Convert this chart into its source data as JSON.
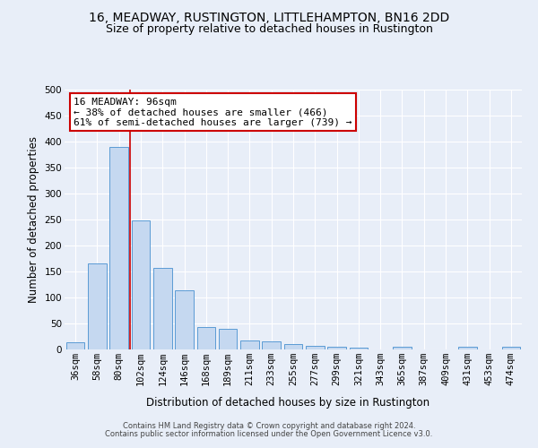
{
  "title": "16, MEADWAY, RUSTINGTON, LITTLEHAMPTON, BN16 2DD",
  "subtitle": "Size of property relative to detached houses in Rustington",
  "xlabel": "Distribution of detached houses by size in Rustington",
  "ylabel": "Number of detached properties",
  "categories": [
    "36sqm",
    "58sqm",
    "80sqm",
    "102sqm",
    "124sqm",
    "146sqm",
    "168sqm",
    "189sqm",
    "211sqm",
    "233sqm",
    "255sqm",
    "277sqm",
    "299sqm",
    "321sqm",
    "343sqm",
    "365sqm",
    "387sqm",
    "409sqm",
    "431sqm",
    "453sqm",
    "474sqm"
  ],
  "values": [
    13,
    165,
    390,
    248,
    157,
    114,
    43,
    40,
    18,
    15,
    10,
    7,
    5,
    4,
    0,
    5,
    0,
    0,
    5,
    0,
    5
  ],
  "bar_color": "#c5d8f0",
  "bar_edge_color": "#5b9bd5",
  "annotation_text": "16 MEADWAY: 96sqm\n← 38% of detached houses are smaller (466)\n61% of semi-detached houses are larger (739) →",
  "annotation_box_color": "#ffffff",
  "annotation_box_edge": "#cc0000",
  "vline_color": "#cc0000",
  "footer1": "Contains HM Land Registry data © Crown copyright and database right 2024.",
  "footer2": "Contains public sector information licensed under the Open Government Licence v3.0.",
  "bg_color": "#e8eef8",
  "grid_color": "#ffffff",
  "ylim": [
    0,
    500
  ],
  "yticks": [
    0,
    50,
    100,
    150,
    200,
    250,
    300,
    350,
    400,
    450,
    500
  ],
  "title_fontsize": 10,
  "subtitle_fontsize": 9,
  "xlabel_fontsize": 8.5,
  "ylabel_fontsize": 8.5,
  "tick_fontsize": 7.5,
  "annotation_fontsize": 8,
  "footer_fontsize": 6
}
